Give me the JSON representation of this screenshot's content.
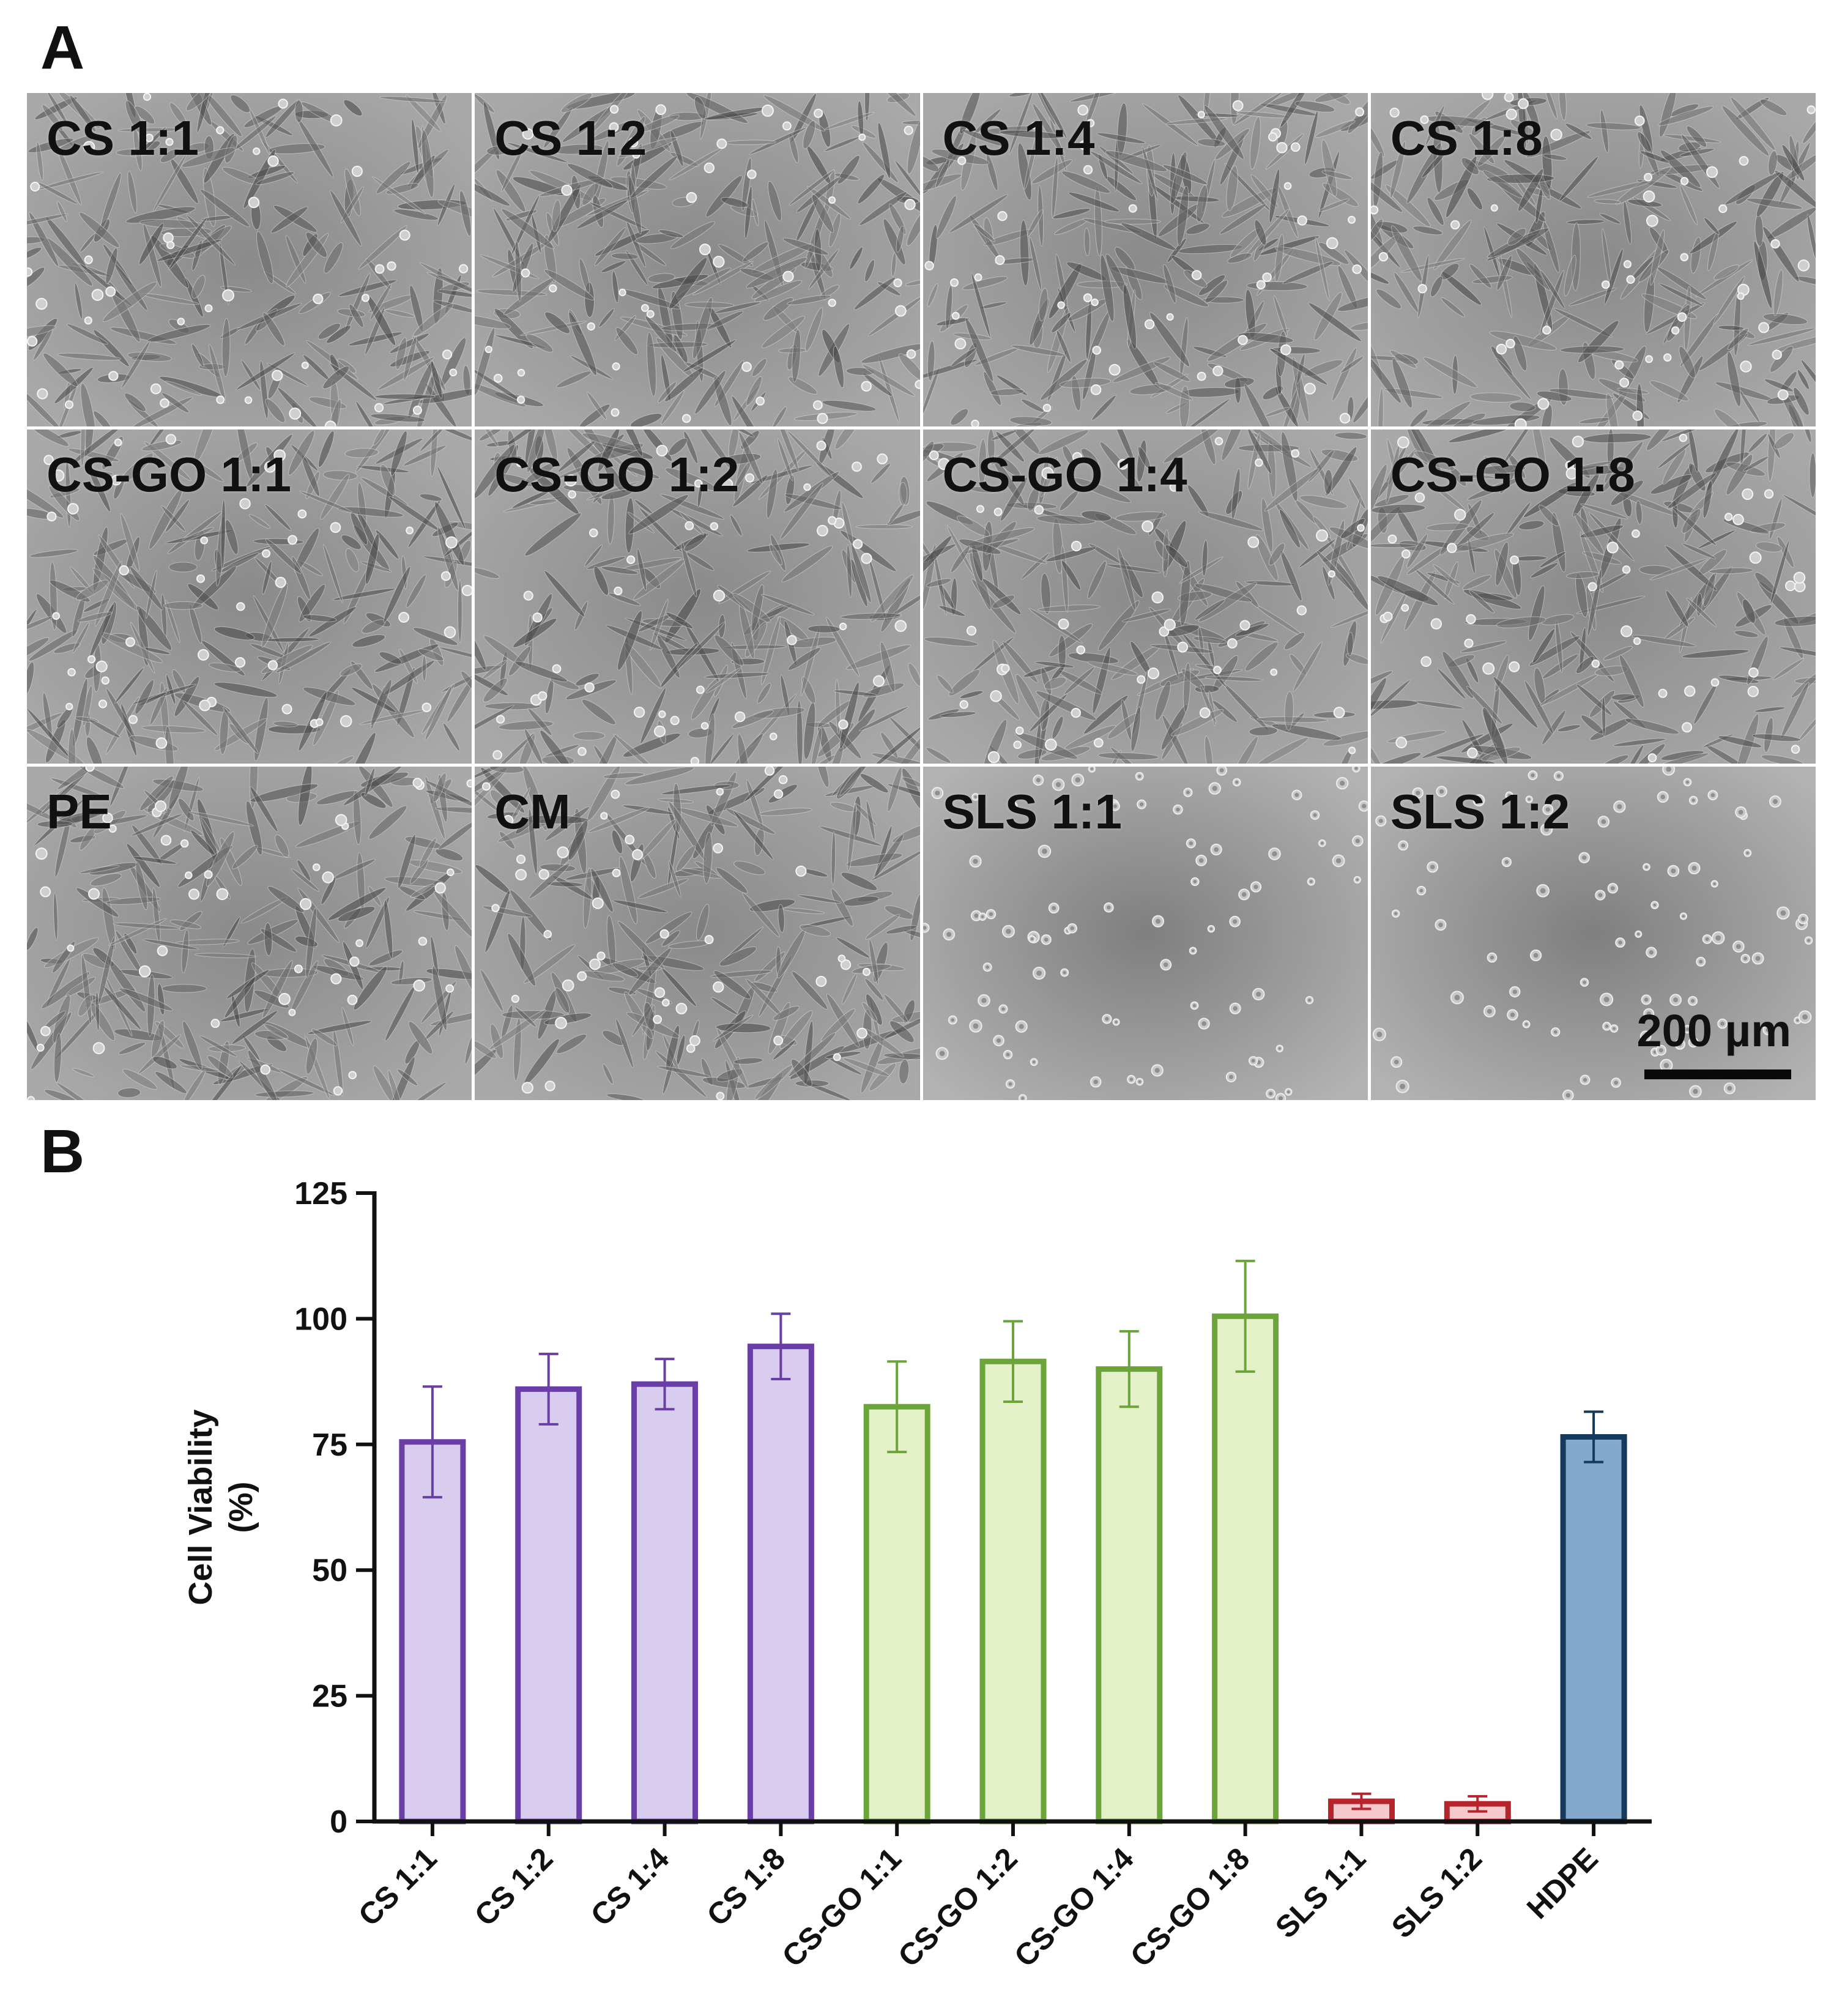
{
  "panel_a": {
    "letter": "A",
    "tiles": [
      {
        "label": "CS 1:1",
        "morph": "dense"
      },
      {
        "label": "CS 1:2",
        "morph": "dense"
      },
      {
        "label": "CS 1:4",
        "morph": "dense"
      },
      {
        "label": "CS 1:8",
        "morph": "dense"
      },
      {
        "label": "CS-GO 1:1",
        "morph": "dense"
      },
      {
        "label": "CS-GO 1:2",
        "morph": "dense"
      },
      {
        "label": "CS-GO 1:4",
        "morph": "dense"
      },
      {
        "label": "CS-GO 1:8",
        "morph": "dense"
      },
      {
        "label": "PE",
        "morph": "dense"
      },
      {
        "label": "CM",
        "morph": "dense"
      },
      {
        "label": "SLS 1:1",
        "morph": "sparse"
      },
      {
        "label": "SLS 1:2",
        "morph": "sparse"
      }
    ],
    "scale_bar": "200 µm"
  },
  "panel_b": {
    "letter": "B"
  },
  "chart_data": {
    "type": "bar",
    "title": "",
    "ylabel": "Cell Viability (%)",
    "ylabel_lines": [
      "Cell Viability",
      "(%)"
    ],
    "xlabel": "",
    "ylim": [
      0,
      125
    ],
    "yticks": [
      0,
      25,
      50,
      75,
      100,
      125
    ],
    "categories": [
      "CS 1:1",
      "CS 1:2",
      "CS 1:4",
      "CS 1:8",
      "CS-GO 1:1",
      "CS-GO 1:2",
      "CS-GO 1:4",
      "CS-GO 1:8",
      "SLS 1:1",
      "SLS 1:2",
      "HDPE"
    ],
    "values": [
      75.5,
      86,
      87,
      94.5,
      82.5,
      91.5,
      90,
      100.5,
      4,
      3.5,
      76.5
    ],
    "errors": [
      11,
      7,
      5,
      6.5,
      9,
      8,
      7.5,
      11,
      1.5,
      1.5,
      5
    ],
    "fills": [
      "#d8cdee",
      "#d8cdee",
      "#d8cdee",
      "#d8cdee",
      "#e3f0c8",
      "#e3f0c8",
      "#e3f0c8",
      "#e3f0c8",
      "#f5c9cc",
      "#f5c9cc",
      "#83a9cd"
    ],
    "strokes": [
      "#6a3fa5",
      "#6a3fa5",
      "#6a3fa5",
      "#6a3fa5",
      "#6ba53a",
      "#6ba53a",
      "#6ba53a",
      "#6ba53a",
      "#b5252b",
      "#b5252b",
      "#163a5c"
    ],
    "grid": false
  }
}
